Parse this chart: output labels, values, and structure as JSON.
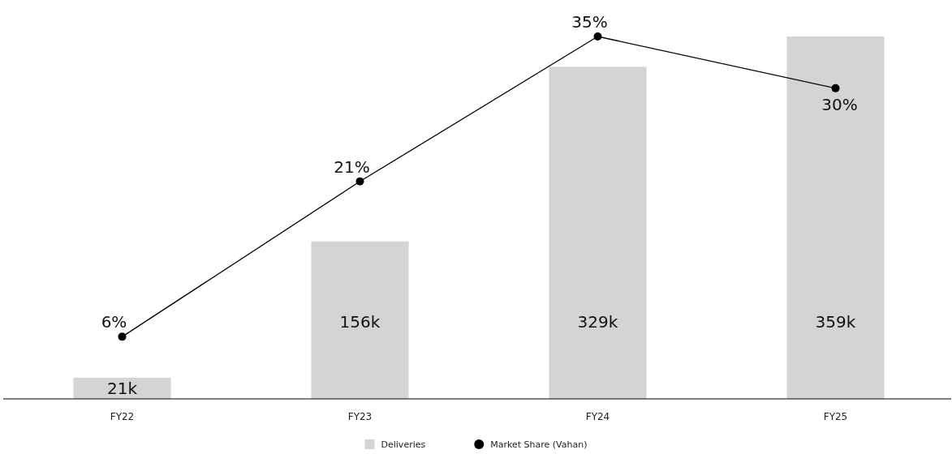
{
  "chart_data": {
    "type": "bar",
    "categories": [
      "FY22",
      "FY23",
      "FY24",
      "FY25"
    ],
    "series": [
      {
        "name": "Deliveries",
        "color": "#d4d4d4",
        "values": [
          21,
          156,
          329,
          359
        ],
        "value_labels": [
          "21k",
          "156k",
          "329k",
          "359k"
        ]
      },
      {
        "name": "Market Share (Vahan)",
        "type": "line",
        "axis": "y2",
        "color": "#000000",
        "values": [
          6,
          21,
          35,
          30
        ],
        "value_labels": [
          "6%",
          "21%",
          "35%",
          "30%"
        ]
      }
    ],
    "tick_labels": "x",
    "grid": false,
    "legend": "bottom",
    "marker": "circle",
    "line_style": "solid"
  }
}
